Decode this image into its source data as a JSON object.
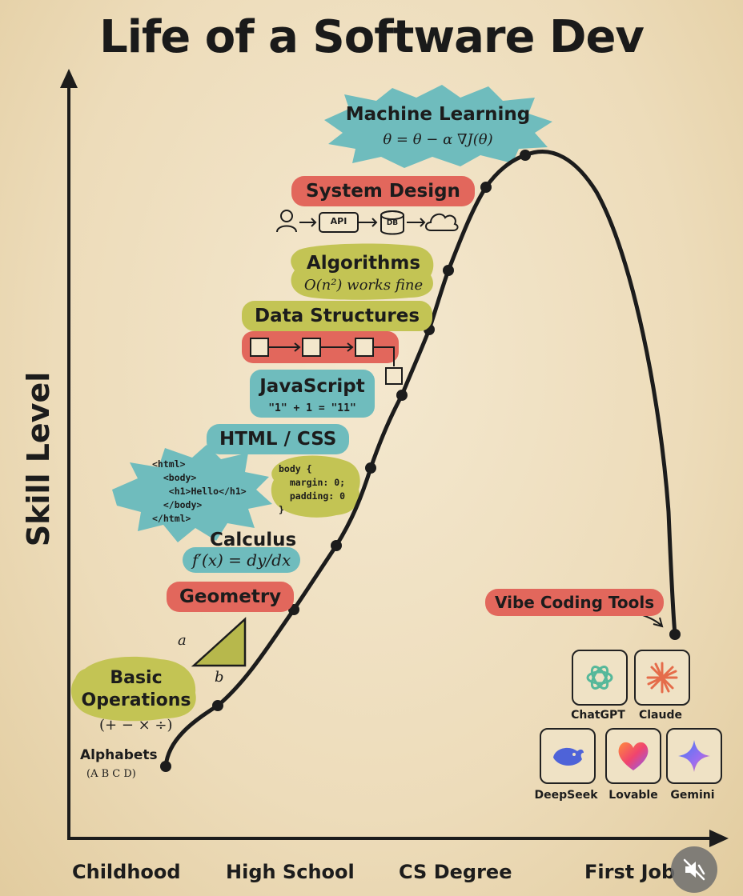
{
  "chart_data": {
    "type": "line",
    "title": "Life of a Software Dev",
    "ylabel": "Skill Level",
    "x_ticks": [
      "Childhood",
      "High School",
      "CS Degree",
      "First Job"
    ],
    "grid": false,
    "milestones": [
      {
        "label": "Alphabets",
        "sub": "(A B C D)"
      },
      {
        "label": "Basic Operations",
        "sub": "(+ − × ÷)"
      },
      {
        "label": "Geometry",
        "sub_a": "a",
        "sub_b": "b"
      },
      {
        "label": "Calculus",
        "sub": "f′(x) = dy/dx"
      },
      {
        "label": "HTML / CSS",
        "code_html": "<html>\n  <body>\n   <h1>Hello</h1>\n  </body>\n</html>",
        "code_css": "body {\n  margin: 0;\n  padding: 0\n}"
      },
      {
        "label": "JavaScript",
        "sub": "\"1\" + 1 = \"11\""
      },
      {
        "label": "Data Structures"
      },
      {
        "label": "Algorithms",
        "sub": "O(n²) works fine"
      },
      {
        "label": "System Design",
        "diagram_api": "API",
        "diagram_db": "DB"
      },
      {
        "label": "Machine Learning",
        "sub": "θ = θ − α ∇J(θ)"
      },
      {
        "label": "Vibe Coding Tools"
      }
    ],
    "tools": [
      "ChatGPT",
      "Claude",
      "DeepSeek",
      "Lovable",
      "Gemini"
    ]
  },
  "colors": {
    "red": "#e2675c",
    "green": "#c3c454",
    "teal": "#6fbcbd",
    "line": "#1c1c1c"
  },
  "icons": {
    "mute": "mute-icon"
  }
}
